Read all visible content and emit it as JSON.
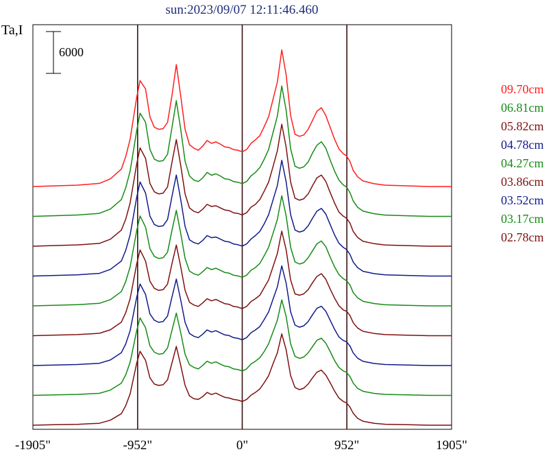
{
  "chart_data": {
    "type": "line",
    "title": "sun:2023/09/07 12:11:46.460",
    "ylabel": "Ta,I",
    "scale_bar": {
      "label": "6000",
      "value": 6000
    },
    "xlim": [
      -1905,
      1905
    ],
    "x_ticks": [
      {
        "value": -1905,
        "label": "-1905\""
      },
      {
        "value": -952,
        "label": "-952\""
      },
      {
        "value": 0,
        "label": "0\""
      },
      {
        "value": 952,
        "label": "952\""
      },
      {
        "value": 1905,
        "label": "1905\""
      }
    ],
    "vertical_lines": [
      -952,
      0,
      952
    ],
    "x": [
      -1905,
      -1700,
      -1500,
      -1300,
      -1200,
      -1100,
      -1060,
      -1020,
      -990,
      -960,
      -930,
      -880,
      -840,
      -800,
      -760,
      -720,
      -680,
      -640,
      -600,
      -560,
      -520,
      -480,
      -440,
      -400,
      -360,
      -320,
      -280,
      -240,
      -200,
      -160,
      -120,
      -80,
      -40,
      0,
      40,
      80,
      120,
      160,
      200,
      240,
      280,
      320,
      360,
      400,
      440,
      480,
      520,
      560,
      600,
      640,
      680,
      720,
      760,
      800,
      840,
      880,
      920,
      950,
      980,
      1010,
      1050,
      1100,
      1200,
      1300,
      1500,
      1700,
      1905
    ],
    "series": [
      {
        "name": "09.70cm",
        "color": "#ff1c1c",
        "values": [
          0,
          100,
          200,
          450,
          1100,
          2500,
          4300,
          6800,
          9800,
          12800,
          15200,
          14000,
          10000,
          8500,
          8200,
          8300,
          9200,
          13000,
          17500,
          13000,
          8200,
          6000,
          5500,
          5200,
          5800,
          6600,
          6200,
          6400,
          6100,
          5700,
          5600,
          5300,
          5200,
          5000,
          5300,
          6200,
          6700,
          7300,
          8600,
          10000,
          12500,
          15000,
          19600,
          16000,
          10200,
          7500,
          7200,
          7400,
          8200,
          9500,
          10800,
          11300,
          10200,
          8500,
          6800,
          5400,
          4700,
          4400,
          3600,
          2300,
          1400,
          800,
          400,
          200,
          100,
          0,
          0
        ]
      },
      {
        "name": "06.81cm",
        "color": "#158b15",
        "values": [
          0,
          100,
          200,
          430,
          1050,
          2400,
          4100,
          6500,
          9400,
          12300,
          14800,
          13500,
          9600,
          8200,
          7900,
          8000,
          8900,
          12700,
          16600,
          12500,
          7900,
          5800,
          5200,
          5000,
          5500,
          6300,
          5900,
          6100,
          5800,
          5400,
          5300,
          5000,
          4900,
          4700,
          5000,
          5800,
          6300,
          7000,
          8200,
          9600,
          12000,
          14400,
          18700,
          15200,
          9700,
          7200,
          6900,
          7100,
          7800,
          9100,
          10200,
          10700,
          9800,
          8100,
          6500,
          5200,
          4500,
          4200,
          3400,
          2200,
          1300,
          750,
          380,
          190,
          90,
          0,
          0
        ]
      },
      {
        "name": "05.82cm",
        "color": "#7e0f0f",
        "values": [
          0,
          100,
          190,
          400,
          1000,
          2300,
          3900,
          6200,
          9000,
          11800,
          14100,
          12600,
          9000,
          7800,
          7500,
          7600,
          8500,
          12000,
          15300,
          11600,
          7500,
          5500,
          5000,
          4800,
          5300,
          6000,
          5700,
          5800,
          5500,
          5200,
          5100,
          4800,
          4700,
          4500,
          4800,
          5600,
          6000,
          6700,
          7900,
          9200,
          11400,
          13700,
          17500,
          14200,
          9200,
          6900,
          6600,
          6800,
          7500,
          8700,
          9800,
          10200,
          9300,
          7700,
          6200,
          4900,
          4300,
          4000,
          3300,
          2100,
          1250,
          700,
          360,
          180,
          90,
          0,
          0
        ]
      },
      {
        "name": "04.78cm",
        "color": "#101a8a",
        "values": [
          0,
          90,
          180,
          380,
          950,
          2150,
          3700,
          5900,
          8600,
          11300,
          13500,
          11900,
          8600,
          7400,
          7100,
          7200,
          8100,
          11400,
          14500,
          11000,
          7100,
          5200,
          4800,
          4600,
          5100,
          5800,
          5500,
          5600,
          5300,
          5000,
          4900,
          4600,
          4500,
          4300,
          4600,
          5300,
          5800,
          6400,
          7500,
          8800,
          10900,
          13000,
          16600,
          13500,
          8800,
          6600,
          6300,
          6500,
          7200,
          8300,
          9300,
          9700,
          8900,
          7400,
          5900,
          4700,
          4100,
          3800,
          3100,
          2000,
          1200,
          680,
          340,
          170,
          85,
          0,
          0
        ]
      },
      {
        "name": "04.27cm",
        "color": "#158b15",
        "values": [
          0,
          90,
          170,
          360,
          900,
          2050,
          3500,
          5600,
          8200,
          10800,
          12900,
          11300,
          8200,
          7100,
          6800,
          6900,
          7700,
          10800,
          13700,
          10400,
          6800,
          5000,
          4600,
          4400,
          4900,
          5500,
          5200,
          5400,
          5100,
          4800,
          4700,
          4400,
          4300,
          4100,
          4400,
          5100,
          5500,
          6100,
          7200,
          8400,
          10400,
          12400,
          15800,
          12900,
          8400,
          6300,
          6000,
          6200,
          6900,
          7900,
          8900,
          9300,
          8500,
          7000,
          5600,
          4500,
          3900,
          3600,
          3000,
          1900,
          1150,
          650,
          330,
          160,
          80,
          0,
          0
        ]
      },
      {
        "name": "03.86cm",
        "color": "#7e0f0f",
        "values": [
          0,
          85,
          160,
          340,
          850,
          1950,
          3300,
          5300,
          7800,
          10300,
          12300,
          10700,
          7800,
          6800,
          6500,
          6600,
          7400,
          10300,
          13000,
          9900,
          6500,
          4800,
          4400,
          4200,
          4700,
          5300,
          5000,
          5200,
          4900,
          4600,
          4500,
          4200,
          4100,
          3900,
          4200,
          4900,
          5300,
          5800,
          6900,
          8000,
          9900,
          11800,
          15000,
          12300,
          8000,
          6000,
          5800,
          6000,
          6600,
          7600,
          8500,
          8900,
          8100,
          6700,
          5400,
          4300,
          3700,
          3500,
          2900,
          1850,
          1100,
          630,
          320,
          160,
          80,
          0,
          0
        ]
      },
      {
        "name": "03.52cm",
        "color": "#101a8a",
        "values": [
          0,
          80,
          150,
          320,
          800,
          1850,
          3100,
          5000,
          7400,
          9800,
          11700,
          10200,
          7400,
          6500,
          6200,
          6300,
          7100,
          9800,
          12400,
          9400,
          6200,
          4600,
          4200,
          4000,
          4500,
          5100,
          4800,
          5000,
          4700,
          4400,
          4300,
          4000,
          3900,
          3700,
          4000,
          4700,
          5100,
          5600,
          6600,
          7700,
          9500,
          11300,
          14300,
          11800,
          7700,
          5800,
          5500,
          5700,
          6300,
          7300,
          8200,
          8500,
          7800,
          6500,
          5200,
          4100,
          3600,
          3400,
          2800,
          1800,
          1050,
          600,
          300,
          150,
          75,
          0,
          0
        ]
      },
      {
        "name": "03.17cm",
        "color": "#158b15",
        "values": [
          0,
          75,
          140,
          300,
          760,
          1750,
          2950,
          4750,
          7000,
          9300,
          11100,
          9700,
          7100,
          6200,
          5900,
          6000,
          6800,
          9300,
          11800,
          9000,
          5900,
          4400,
          4000,
          3800,
          4300,
          4900,
          4600,
          4800,
          4500,
          4200,
          4100,
          3800,
          3700,
          3500,
          3800,
          4500,
          4900,
          5400,
          6300,
          7400,
          9100,
          10800,
          13700,
          11300,
          7400,
          5600,
          5300,
          5500,
          6100,
          7000,
          7900,
          8200,
          7500,
          6300,
          5000,
          4000,
          3500,
          3300,
          2700,
          1750,
          1000,
          580,
          290,
          140,
          70,
          0,
          0
        ]
      },
      {
        "name": "02.78cm",
        "color": "#7e0f0f",
        "values": [
          0,
          70,
          130,
          280,
          720,
          1650,
          2800,
          4500,
          6700,
          8900,
          10600,
          9300,
          6800,
          5900,
          5700,
          5800,
          6500,
          8900,
          11300,
          8600,
          5700,
          4200,
          3800,
          3700,
          4100,
          4700,
          4400,
          4600,
          4300,
          4000,
          3900,
          3700,
          3600,
          3400,
          3700,
          4300,
          4700,
          5200,
          6100,
          7100,
          8800,
          10400,
          13100,
          10800,
          7100,
          5400,
          5100,
          5300,
          5900,
          6800,
          7600,
          7900,
          7200,
          6100,
          4900,
          3900,
          3400,
          3200,
          2600,
          1700,
          980,
          560,
          280,
          140,
          70,
          0,
          0
        ]
      }
    ]
  }
}
